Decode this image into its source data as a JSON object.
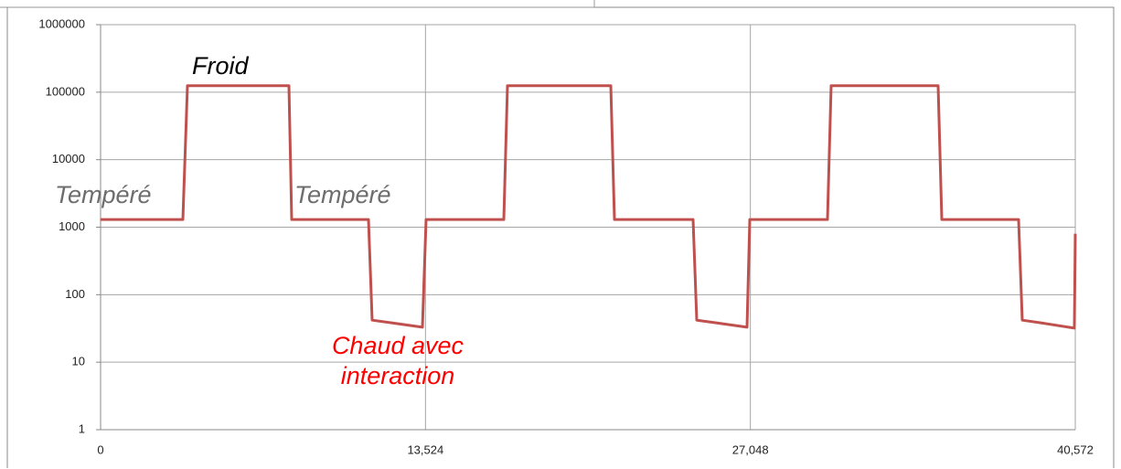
{
  "chart_data": {
    "type": "line",
    "log_scale": true,
    "grid": true,
    "x": [
      0,
      3425,
      3616,
      7840,
      7955,
      11152,
      11304,
      12179,
      13397,
      13549,
      16784,
      16937,
      21238,
      21390,
      24663,
      24815,
      25690,
      26909,
      27023,
      30258,
      30410,
      34863,
      35016,
      38213,
      38365,
      39202,
      40534,
      40572
    ],
    "series": [
      {
        "color": "#c0504d",
        "values": [
          1300,
          1300,
          125000,
          125000,
          1300,
          1300,
          42,
          38,
          33,
          1300,
          1300,
          125000,
          125000,
          1300,
          1300,
          42,
          38,
          33,
          1300,
          1300,
          125000,
          125000,
          1300,
          1300,
          42,
          38,
          32,
          800
        ]
      }
    ],
    "xlim": [
      0,
      40572
    ],
    "xticks": [
      0,
      {
        "value": 13524,
        "label": "13,524"
      },
      {
        "value": 27048,
        "label": "27,048"
      },
      {
        "value": 40572,
        "label": "40,572"
      }
    ],
    "ylim": [
      1,
      1000000
    ],
    "yticks": [
      1,
      10,
      100,
      1000,
      10000,
      100000,
      1000000
    ],
    "annotations": [
      {
        "lines": [
          "Froid"
        ],
        "color": "#000000"
      },
      {
        "lines": [
          "Tempéré"
        ],
        "color": "#6d6d6d"
      },
      {
        "lines": [
          "Tempéré"
        ],
        "color": "#6d6d6d"
      },
      {
        "lines": [
          "Chaud avec",
          "interaction"
        ],
        "color": "#ff0000"
      }
    ]
  }
}
